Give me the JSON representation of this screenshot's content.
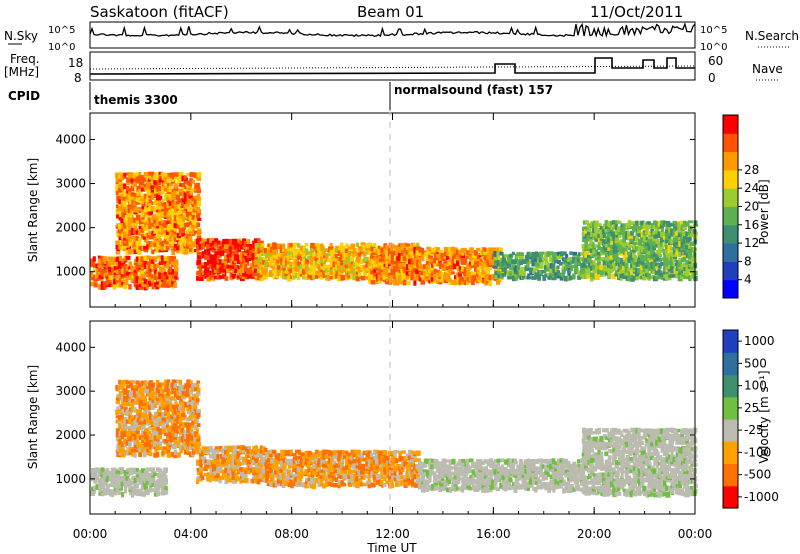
{
  "header": {
    "station": "Saskatoon (fitACF)",
    "beam": "Beam 01",
    "date": "11/Oct/2011"
  },
  "noise_panel": {
    "left_label": "N.Sky",
    "right_label": "N.Search",
    "y_ticks_left": [
      "10^5",
      "10^0"
    ],
    "y_ticks_right": [
      "10^5",
      "10^0"
    ]
  },
  "freq_panel": {
    "left_label_1": "Freq.",
    "left_label_2": "[MHz]",
    "right_label": "Nave",
    "y_ticks_left": [
      "18",
      "8"
    ],
    "y_ticks_right": [
      "60",
      "0"
    ]
  },
  "cpid_panel": {
    "label": "CPID",
    "modes": [
      "themis 3300",
      "normalsound (fast) 157"
    ]
  },
  "chart_data": [
    {
      "type": "heatmap",
      "quantity": "Power",
      "ylabel": "Slant Range [km]",
      "xlabel": "Time UT",
      "x_ticks": [
        "00:00",
        "04:00",
        "08:00",
        "12:00",
        "16:00",
        "20:00",
        "00:00"
      ],
      "y_ticks": [
        1000,
        2000,
        3000,
        4000
      ],
      "ylim": [
        200,
        4600
      ],
      "colorbar_label": "Power [dB]",
      "colorbar_ticks": [
        4,
        8,
        12,
        16,
        20,
        24,
        28
      ],
      "colorbar_colors": [
        "#0000ff",
        "#1f3fbf",
        "#2f6fa0",
        "#3e8f70",
        "#5fb050",
        "#9ccc30",
        "#ffd000",
        "#ff9900",
        "#ff5500",
        "#ff0000"
      ],
      "echo_regions": [
        {
          "t0": 0.0,
          "t1": 3.4,
          "r0": 700,
          "r1": 1400,
          "level": 26
        },
        {
          "t0": 1.0,
          "t1": 4.3,
          "r0": 1500,
          "r1": 3300,
          "level": 24
        },
        {
          "t0": 4.2,
          "t1": 6.8,
          "r0": 900,
          "r1": 1800,
          "level": 28
        },
        {
          "t0": 6.5,
          "t1": 13.0,
          "r0": 900,
          "r1": 1700,
          "level": 22
        },
        {
          "t0": 11.0,
          "t1": 16.3,
          "r0": 800,
          "r1": 1600,
          "level": 24
        },
        {
          "t0": 16.0,
          "t1": 19.5,
          "r0": 900,
          "r1": 1500,
          "level": 12
        },
        {
          "t0": 19.5,
          "t1": 24.0,
          "r0": 900,
          "r1": 2200,
          "level": 14
        }
      ]
    },
    {
      "type": "heatmap",
      "quantity": "Velocity",
      "ylabel": "Slant Range [km]",
      "xlabel": "Time UT",
      "x_ticks": [
        "00:00",
        "04:00",
        "08:00",
        "12:00",
        "16:00",
        "20:00",
        "00:00"
      ],
      "y_ticks": [
        1000,
        2000,
        3000,
        4000
      ],
      "ylim": [
        200,
        4600
      ],
      "colorbar_label": "Velocity [m s⁻¹]",
      "colorbar_ticks": [
        1000,
        500,
        100,
        25,
        -25,
        -100,
        -500,
        -1000
      ],
      "colorbar_colors": [
        "#1f3fbf",
        "#2f6fa0",
        "#3e8f70",
        "#6fbf40",
        "#bbbbb0",
        "#ffa000",
        "#ff7000",
        "#ff0000"
      ],
      "echo_regions": [
        {
          "t0": 0.0,
          "t1": 3.0,
          "r0": 700,
          "r1": 1300,
          "level": 0
        },
        {
          "t0": 1.0,
          "t1": 4.3,
          "r0": 1600,
          "r1": 3300,
          "level": -200
        },
        {
          "t0": 4.2,
          "t1": 7.0,
          "r0": 1000,
          "r1": 1800,
          "level": -150
        },
        {
          "t0": 7.0,
          "t1": 13.0,
          "r0": 900,
          "r1": 1700,
          "level": -120
        },
        {
          "t0": 13.0,
          "t1": 19.5,
          "r0": 800,
          "r1": 1500,
          "level": 0
        },
        {
          "t0": 19.5,
          "t1": 24.0,
          "r0": 700,
          "r1": 2200,
          "level": 0
        }
      ]
    }
  ],
  "time_axis_label": "Time UT"
}
